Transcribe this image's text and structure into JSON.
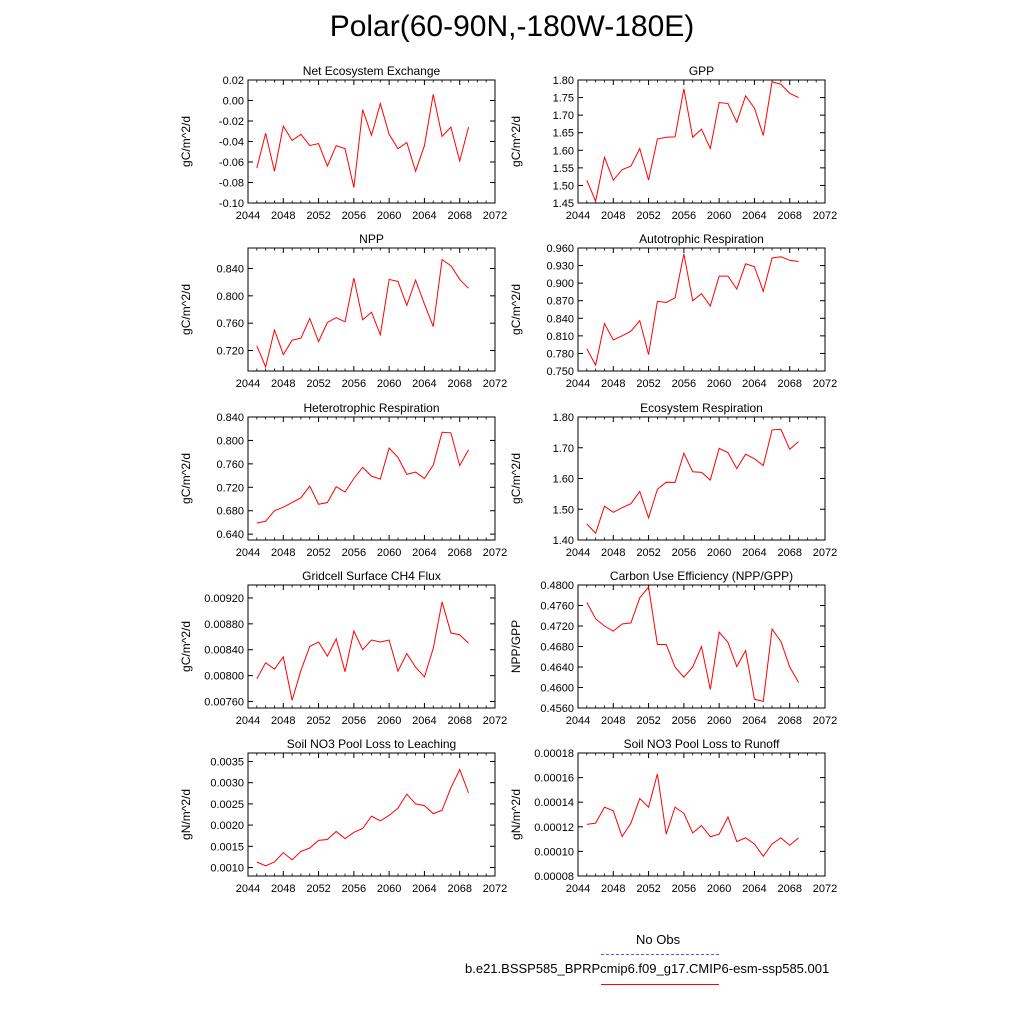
{
  "page": {
    "title": "Polar(60-90N,-180W-180E)"
  },
  "legend": {
    "obs_label": "No Obs",
    "obs_color": "#5555ff",
    "model_label": "b.e21.BSSP585_BPRPcmip6.f09_g17.CMIP6-esm-ssp585.001",
    "model_color": "#ff0000"
  },
  "chart_data": [
    {
      "type": "line",
      "title": "Net Ecosystem Exchange",
      "ylabel": "gC/m^2/d",
      "xlim": [
        2044,
        2072
      ],
      "ylim": [
        -0.1,
        0.02
      ],
      "xticks": [
        2044,
        2048,
        2052,
        2056,
        2060,
        2064,
        2068,
        2072
      ],
      "yticks": [
        -0.1,
        -0.08,
        -0.06,
        -0.04,
        -0.02,
        0.0,
        0.02
      ],
      "yticklabels": [
        "-0.10",
        "-0.08",
        "-0.06",
        "-0.04",
        "-0.02",
        "0.00",
        "0.02"
      ],
      "x": [
        2045,
        2046,
        2047,
        2048,
        2049,
        2050,
        2051,
        2052,
        2053,
        2054,
        2055,
        2056,
        2057,
        2058,
        2059,
        2060,
        2061,
        2062,
        2063,
        2064,
        2065,
        2066,
        2067,
        2068,
        2069
      ],
      "series": [
        {
          "color": "#ff0000",
          "values": [
            -0.066,
            -0.032,
            -0.069,
            -0.025,
            -0.039,
            -0.033,
            -0.044,
            -0.042,
            -0.064,
            -0.044,
            -0.047,
            -0.085,
            -0.009,
            -0.034,
            -0.003,
            -0.033,
            -0.047,
            -0.041,
            -0.069,
            -0.044,
            0.006,
            -0.035,
            -0.026,
            -0.059,
            -0.026
          ]
        }
      ]
    },
    {
      "type": "line",
      "title": "GPP",
      "ylabel": "gC/m^2/d",
      "xlim": [
        2044,
        2072
      ],
      "ylim": [
        1.45,
        1.8
      ],
      "xticks": [
        2044,
        2048,
        2052,
        2056,
        2060,
        2064,
        2068,
        2072
      ],
      "yticks": [
        1.45,
        1.5,
        1.55,
        1.6,
        1.65,
        1.7,
        1.75,
        1.8
      ],
      "yticklabels": [
        "1.45",
        "1.50",
        "1.55",
        "1.60",
        "1.65",
        "1.70",
        "1.75",
        "1.80"
      ],
      "x": [
        2045,
        2046,
        2047,
        2048,
        2049,
        2050,
        2051,
        2052,
        2053,
        2054,
        2055,
        2056,
        2057,
        2058,
        2059,
        2060,
        2061,
        2062,
        2063,
        2064,
        2065,
        2066,
        2067,
        2068,
        2069
      ],
      "series": [
        {
          "color": "#ff0000",
          "values": [
            1.515,
            1.455,
            1.58,
            1.515,
            1.545,
            1.555,
            1.605,
            1.515,
            1.632,
            1.637,
            1.638,
            1.775,
            1.637,
            1.66,
            1.605,
            1.736,
            1.733,
            1.68,
            1.755,
            1.72,
            1.642,
            1.795,
            1.788,
            1.762,
            1.75
          ]
        }
      ]
    },
    {
      "type": "line",
      "title": "NPP",
      "ylabel": "gC/m^2/d",
      "xlim": [
        2044,
        2072
      ],
      "ylim": [
        0.69,
        0.87
      ],
      "xticks": [
        2044,
        2048,
        2052,
        2056,
        2060,
        2064,
        2068,
        2072
      ],
      "yticks": [
        0.72,
        0.76,
        0.8,
        0.84
      ],
      "yticklabels": [
        "0.720",
        "0.760",
        "0.800",
        "0.840"
      ],
      "x": [
        2045,
        2046,
        2047,
        2048,
        2049,
        2050,
        2051,
        2052,
        2053,
        2054,
        2055,
        2056,
        2057,
        2058,
        2059,
        2060,
        2061,
        2062,
        2063,
        2064,
        2065,
        2066,
        2067,
        2068,
        2069
      ],
      "series": [
        {
          "color": "#ff0000",
          "values": [
            0.727,
            0.696,
            0.75,
            0.714,
            0.735,
            0.738,
            0.767,
            0.733,
            0.761,
            0.768,
            0.762,
            0.826,
            0.765,
            0.776,
            0.743,
            0.824,
            0.821,
            0.786,
            0.823,
            0.788,
            0.755,
            0.853,
            0.844,
            0.824,
            0.811
          ]
        }
      ]
    },
    {
      "type": "line",
      "title": "Autotrophic Respiration",
      "ylabel": "gC/m^2/d",
      "xlim": [
        2044,
        2072
      ],
      "ylim": [
        0.75,
        0.96
      ],
      "xticks": [
        2044,
        2048,
        2052,
        2056,
        2060,
        2064,
        2068,
        2072
      ],
      "yticks": [
        0.75,
        0.78,
        0.81,
        0.84,
        0.87,
        0.9,
        0.93,
        0.96
      ],
      "yticklabels": [
        "0.750",
        "0.780",
        "0.810",
        "0.840",
        "0.870",
        "0.900",
        "0.930",
        "0.960"
      ],
      "x": [
        2045,
        2046,
        2047,
        2048,
        2049,
        2050,
        2051,
        2052,
        2053,
        2054,
        2055,
        2056,
        2057,
        2058,
        2059,
        2060,
        2061,
        2062,
        2063,
        2064,
        2065,
        2066,
        2067,
        2068,
        2069
      ],
      "series": [
        {
          "color": "#ff0000",
          "values": [
            0.788,
            0.76,
            0.831,
            0.803,
            0.81,
            0.818,
            0.836,
            0.778,
            0.869,
            0.867,
            0.875,
            0.95,
            0.87,
            0.882,
            0.861,
            0.912,
            0.912,
            0.89,
            0.933,
            0.928,
            0.886,
            0.943,
            0.945,
            0.939,
            0.937
          ]
        }
      ]
    },
    {
      "type": "line",
      "title": "Heterotrophic Respiration",
      "ylabel": "gC/m^2/d",
      "xlim": [
        2044,
        2072
      ],
      "ylim": [
        0.63,
        0.84
      ],
      "xticks": [
        2044,
        2048,
        2052,
        2056,
        2060,
        2064,
        2068,
        2072
      ],
      "yticks": [
        0.64,
        0.68,
        0.72,
        0.76,
        0.8,
        0.84
      ],
      "yticklabels": [
        "0.640",
        "0.680",
        "0.720",
        "0.760",
        "0.800",
        "0.840"
      ],
      "x": [
        2045,
        2046,
        2047,
        2048,
        2049,
        2050,
        2051,
        2052,
        2053,
        2054,
        2055,
        2056,
        2057,
        2058,
        2059,
        2060,
        2061,
        2062,
        2063,
        2064,
        2065,
        2066,
        2067,
        2068,
        2069
      ],
      "series": [
        {
          "color": "#ff0000",
          "values": [
            0.659,
            0.662,
            0.68,
            0.686,
            0.694,
            0.702,
            0.722,
            0.691,
            0.694,
            0.721,
            0.712,
            0.735,
            0.754,
            0.739,
            0.734,
            0.787,
            0.771,
            0.742,
            0.746,
            0.735,
            0.758,
            0.814,
            0.813,
            0.757,
            0.784
          ]
        }
      ]
    },
    {
      "type": "line",
      "title": "Ecosystem Respiration",
      "ylabel": "gC/m^2/d",
      "xlim": [
        2044,
        2072
      ],
      "ylim": [
        1.4,
        1.8
      ],
      "xticks": [
        2044,
        2048,
        2052,
        2056,
        2060,
        2064,
        2068,
        2072
      ],
      "yticks": [
        1.4,
        1.5,
        1.6,
        1.7,
        1.8
      ],
      "yticklabels": [
        "1.40",
        "1.50",
        "1.60",
        "1.70",
        "1.80"
      ],
      "x": [
        2045,
        2046,
        2047,
        2048,
        2049,
        2050,
        2051,
        2052,
        2053,
        2054,
        2055,
        2056,
        2057,
        2058,
        2059,
        2060,
        2061,
        2062,
        2063,
        2064,
        2065,
        2066,
        2067,
        2068,
        2069
      ],
      "series": [
        {
          "color": "#ff0000",
          "values": [
            1.452,
            1.422,
            1.51,
            1.49,
            1.505,
            1.518,
            1.558,
            1.472,
            1.565,
            1.588,
            1.587,
            1.682,
            1.622,
            1.62,
            1.595,
            1.698,
            1.684,
            1.632,
            1.679,
            1.664,
            1.642,
            1.758,
            1.76,
            1.695,
            1.72
          ]
        }
      ]
    },
    {
      "type": "line",
      "title": "Gridcell Surface CH4 Flux",
      "ylabel": "gC/m^2/d",
      "xlim": [
        2044,
        2072
      ],
      "ylim": [
        0.0075,
        0.0094
      ],
      "xticks": [
        2044,
        2048,
        2052,
        2056,
        2060,
        2064,
        2068,
        2072
      ],
      "yticks": [
        0.0076,
        0.008,
        0.0084,
        0.0088,
        0.0092
      ],
      "yticklabels": [
        "0.00760",
        "0.00800",
        "0.00840",
        "0.00880",
        "0.00920"
      ],
      "x": [
        2045,
        2046,
        2047,
        2048,
        2049,
        2050,
        2051,
        2052,
        2053,
        2054,
        2055,
        2056,
        2057,
        2058,
        2059,
        2060,
        2061,
        2062,
        2063,
        2064,
        2065,
        2066,
        2067,
        2068,
        2069
      ],
      "series": [
        {
          "color": "#ff0000",
          "values": [
            0.00795,
            0.0082,
            0.0081,
            0.00829,
            0.00762,
            0.00808,
            0.00845,
            0.00852,
            0.0083,
            0.00857,
            0.00806,
            0.00869,
            0.0084,
            0.00855,
            0.00852,
            0.00855,
            0.00807,
            0.00834,
            0.00813,
            0.00798,
            0.00842,
            0.00914,
            0.00866,
            0.00863,
            0.0085
          ]
        }
      ]
    },
    {
      "type": "line",
      "title": "Carbon Use Efficiency (NPP/GPP)",
      "ylabel": "NPP/GPP",
      "xlim": [
        2044,
        2072
      ],
      "ylim": [
        0.456,
        0.48
      ],
      "xticks": [
        2044,
        2048,
        2052,
        2056,
        2060,
        2064,
        2068,
        2072
      ],
      "yticks": [
        0.456,
        0.46,
        0.464,
        0.468,
        0.472,
        0.476,
        0.48
      ],
      "yticklabels": [
        "0.4560",
        "0.4600",
        "0.4640",
        "0.4680",
        "0.4720",
        "0.4760",
        "0.4800"
      ],
      "x": [
        2045,
        2046,
        2047,
        2048,
        2049,
        2050,
        2051,
        2052,
        2053,
        2054,
        2055,
        2056,
        2057,
        2058,
        2059,
        2060,
        2061,
        2062,
        2063,
        2064,
        2065,
        2066,
        2067,
        2068,
        2069
      ],
      "series": [
        {
          "color": "#ff0000",
          "values": [
            0.4766,
            0.4734,
            0.472,
            0.471,
            0.4724,
            0.4726,
            0.4775,
            0.4796,
            0.4684,
            0.4684,
            0.464,
            0.462,
            0.464,
            0.468,
            0.4596,
            0.4708,
            0.4688,
            0.4641,
            0.4672,
            0.4577,
            0.4573,
            0.4714,
            0.469,
            0.464,
            0.461
          ]
        }
      ]
    },
    {
      "type": "line",
      "title": "Soil NO3 Pool Loss to Leaching",
      "ylabel": "gN/m^2/d",
      "xlim": [
        2044,
        2072
      ],
      "ylim": [
        0.0008,
        0.0037
      ],
      "xticks": [
        2044,
        2048,
        2052,
        2056,
        2060,
        2064,
        2068,
        2072
      ],
      "yticks": [
        0.001,
        0.0015,
        0.002,
        0.0025,
        0.003,
        0.0035
      ],
      "yticklabels": [
        "0.0010",
        "0.0015",
        "0.0020",
        "0.0025",
        "0.0030",
        "0.0035"
      ],
      "x": [
        2045,
        2046,
        2047,
        2048,
        2049,
        2050,
        2051,
        2052,
        2053,
        2054,
        2055,
        2056,
        2057,
        2058,
        2059,
        2060,
        2061,
        2062,
        2063,
        2064,
        2065,
        2066,
        2067,
        2068,
        2069
      ],
      "series": [
        {
          "color": "#ff0000",
          "values": [
            0.00113,
            0.00104,
            0.00113,
            0.00135,
            0.00118,
            0.00138,
            0.00146,
            0.00164,
            0.00166,
            0.00185,
            0.00168,
            0.00183,
            0.00192,
            0.00221,
            0.0021,
            0.00223,
            0.0024,
            0.00273,
            0.0025,
            0.00246,
            0.00227,
            0.00235,
            0.00288,
            0.00331,
            0.00276
          ]
        }
      ]
    },
    {
      "type": "line",
      "title": "Soil NO3 Pool Loss to Runoff",
      "ylabel": "gN/m^2/d",
      "xlim": [
        2044,
        2072
      ],
      "ylim": [
        8e-05,
        0.00018
      ],
      "xticks": [
        2044,
        2048,
        2052,
        2056,
        2060,
        2064,
        2068,
        2072
      ],
      "yticks": [
        8e-05,
        0.0001,
        0.00012,
        0.00014,
        0.00016,
        0.00018
      ],
      "yticklabels": [
        "0.00008",
        "0.00010",
        "0.00012",
        "0.00014",
        "0.00016",
        "0.00018"
      ],
      "x": [
        2045,
        2046,
        2047,
        2048,
        2049,
        2050,
        2051,
        2052,
        2053,
        2054,
        2055,
        2056,
        2057,
        2058,
        2059,
        2060,
        2061,
        2062,
        2063,
        2064,
        2065,
        2066,
        2067,
        2068,
        2069
      ],
      "series": [
        {
          "color": "#ff0000",
          "values": [
            0.000122,
            0.000123,
            0.000136,
            0.000133,
            0.000112,
            0.000123,
            0.000143,
            0.000136,
            0.000163,
            0.000114,
            0.000136,
            0.000131,
            0.000115,
            0.000121,
            0.000112,
            0.000114,
            0.000128,
            0.000108,
            0.000111,
            0.000106,
            9.6e-05,
            0.000106,
            0.000111,
            0.000105,
            0.000111
          ]
        }
      ]
    }
  ]
}
